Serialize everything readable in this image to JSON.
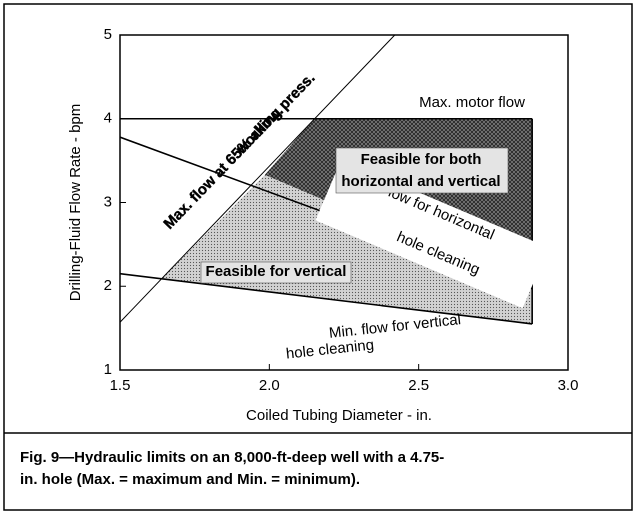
{
  "chart_data": {
    "type": "line",
    "xlabel": "Coiled Tubing Diameter - in.",
    "ylabel": "Drilling-Fluid Flow Rate - bpm",
    "xlim": [
      1.5,
      3.0
    ],
    "ylim": [
      1,
      5
    ],
    "xticks": [
      1.5,
      {
        "value": 2,
        "label": "2.0"
      },
      2.5,
      {
        "value": 3,
        "label": "3.0"
      }
    ],
    "yticks": [
      1,
      2,
      3,
      4,
      5
    ],
    "series": [
      {
        "name": [
          "Max. motor flow"
        ],
        "color": "#000000",
        "x": [
          1.5,
          2.88
        ],
        "y": [
          4,
          4
        ]
      },
      {
        "name": [
          "Max. flow at 65% allow.",
          "working press."
        ],
        "color": "#000000",
        "x": [
          1.5,
          2.42
        ],
        "y": [
          1.57,
          5
        ]
      },
      {
        "name": [
          "Min. Flow for horizontal",
          "hole cleaning"
        ],
        "color": "#000000",
        "x": [
          1.5,
          2.88
        ],
        "y": [
          3.78,
          1.97
        ]
      },
      {
        "name": [
          "Min. flow for vertical",
          "hole cleaning"
        ],
        "color": "#000000",
        "x": [
          1.5,
          2.88
        ],
        "y": [
          2.15,
          1.55
        ]
      }
    ],
    "regions": [
      {
        "name": [
          "Feasible for both",
          "horizontal and vertical"
        ],
        "color": "#7d7d7d",
        "x": [
          1.985,
          2.15,
          2.88,
          2.88
        ],
        "y": [
          3.33,
          4,
          4,
          1.97
        ]
      },
      {
        "name": [
          "Feasible for vertical"
        ],
        "color": "#d2d2d2",
        "x": [
          1.639,
          1.985,
          2.88,
          2.88
        ],
        "y": [
          2.09,
          3.33,
          1.97,
          1.55
        ]
      }
    ],
    "caption": [
      "Fig. 9—Hydraulic limits on an 8,000-ft-deep well with a 4.75-",
      "in. hole (Max. = maximum and Min. = minimum)."
    ]
  }
}
